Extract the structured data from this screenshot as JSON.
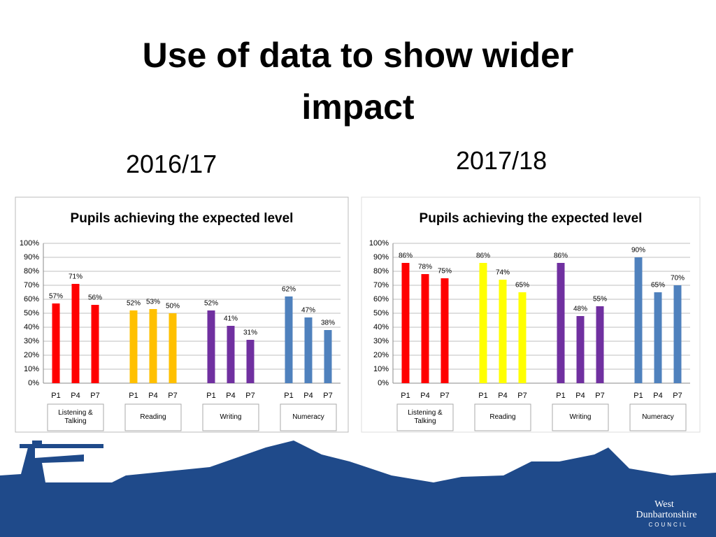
{
  "slide": {
    "title": "Use of data to show wider impact",
    "periods": [
      "2016/17",
      "2017/18"
    ]
  },
  "footer": {
    "logo": [
      "West",
      "Dunbartonshire",
      "COUNCIL"
    ]
  },
  "chart_data": [
    {
      "type": "bar",
      "title": "Pupils achieving the expected level",
      "categories": [
        "P1",
        "P4",
        "P7"
      ],
      "series": [
        {
          "name": "Listening & Talking",
          "color": "#ff0000",
          "values": [
            57,
            71,
            56
          ],
          "value_labels": [
            "57%",
            "71%",
            "56%"
          ]
        },
        {
          "name": "Reading",
          "color": "#ffc000",
          "values": [
            52,
            53,
            50
          ],
          "value_labels": [
            "52%",
            "53%",
            "50%"
          ]
        },
        {
          "name": "Writing",
          "color": "#7030a0",
          "values": [
            52,
            41,
            31
          ],
          "value_labels": [
            "52%",
            "41%",
            "31%"
          ]
        },
        {
          "name": "Numeracy",
          "color": "#4f81bd",
          "values": [
            62,
            47,
            38
          ],
          "value_labels": [
            "62%",
            "47%",
            "38%"
          ]
        }
      ],
      "ylim": [
        0,
        100
      ],
      "yticks": [
        {
          "value": 0,
          "label": "0%"
        },
        {
          "value": 10,
          "label": "10%"
        },
        {
          "value": 20,
          "label": "20%"
        },
        {
          "value": 30,
          "label": "30%"
        },
        {
          "value": 40,
          "label": "40%"
        },
        {
          "value": 50,
          "label": "50%"
        },
        {
          "value": 60,
          "label": "60%"
        },
        {
          "value": 70,
          "label": "70%"
        },
        {
          "value": 80,
          "label": "80%"
        },
        {
          "value": 90,
          "label": "90%"
        },
        {
          "value": 100,
          "label": "100%"
        }
      ],
      "grid": true
    },
    {
      "type": "bar",
      "title": "Pupils achieving the expected level",
      "categories": [
        "P1",
        "P4",
        "P7"
      ],
      "series": [
        {
          "name": "Listening & Talking",
          "color": "#ff0000",
          "values": [
            86,
            78,
            75
          ],
          "value_labels": [
            "86%",
            "78%",
            "75%"
          ]
        },
        {
          "name": "Reading",
          "color": "#ffff00",
          "values": [
            86,
            74,
            65
          ],
          "value_labels": [
            "86%",
            "74%",
            "65%"
          ]
        },
        {
          "name": "Writing",
          "color": "#7030a0",
          "values": [
            86,
            48,
            55
          ],
          "value_labels": [
            "86%",
            "48%",
            "55%"
          ]
        },
        {
          "name": "Numeracy",
          "color": "#4f81bd",
          "values": [
            90,
            65,
            70
          ],
          "value_labels": [
            "90%",
            "65%",
            "70%"
          ]
        }
      ],
      "ylim": [
        0,
        100
      ],
      "yticks": [
        {
          "value": 0,
          "label": "0%"
        },
        {
          "value": 10,
          "label": "10%"
        },
        {
          "value": 20,
          "label": "20%"
        },
        {
          "value": 30,
          "label": "30%"
        },
        {
          "value": 40,
          "label": "40%"
        },
        {
          "value": 50,
          "label": "50%"
        },
        {
          "value": 60,
          "label": "60%"
        },
        {
          "value": 70,
          "label": "70%"
        },
        {
          "value": 80,
          "label": "80%"
        },
        {
          "value": 90,
          "label": "90%"
        },
        {
          "value": 100,
          "label": "100%"
        }
      ],
      "grid": true
    }
  ]
}
